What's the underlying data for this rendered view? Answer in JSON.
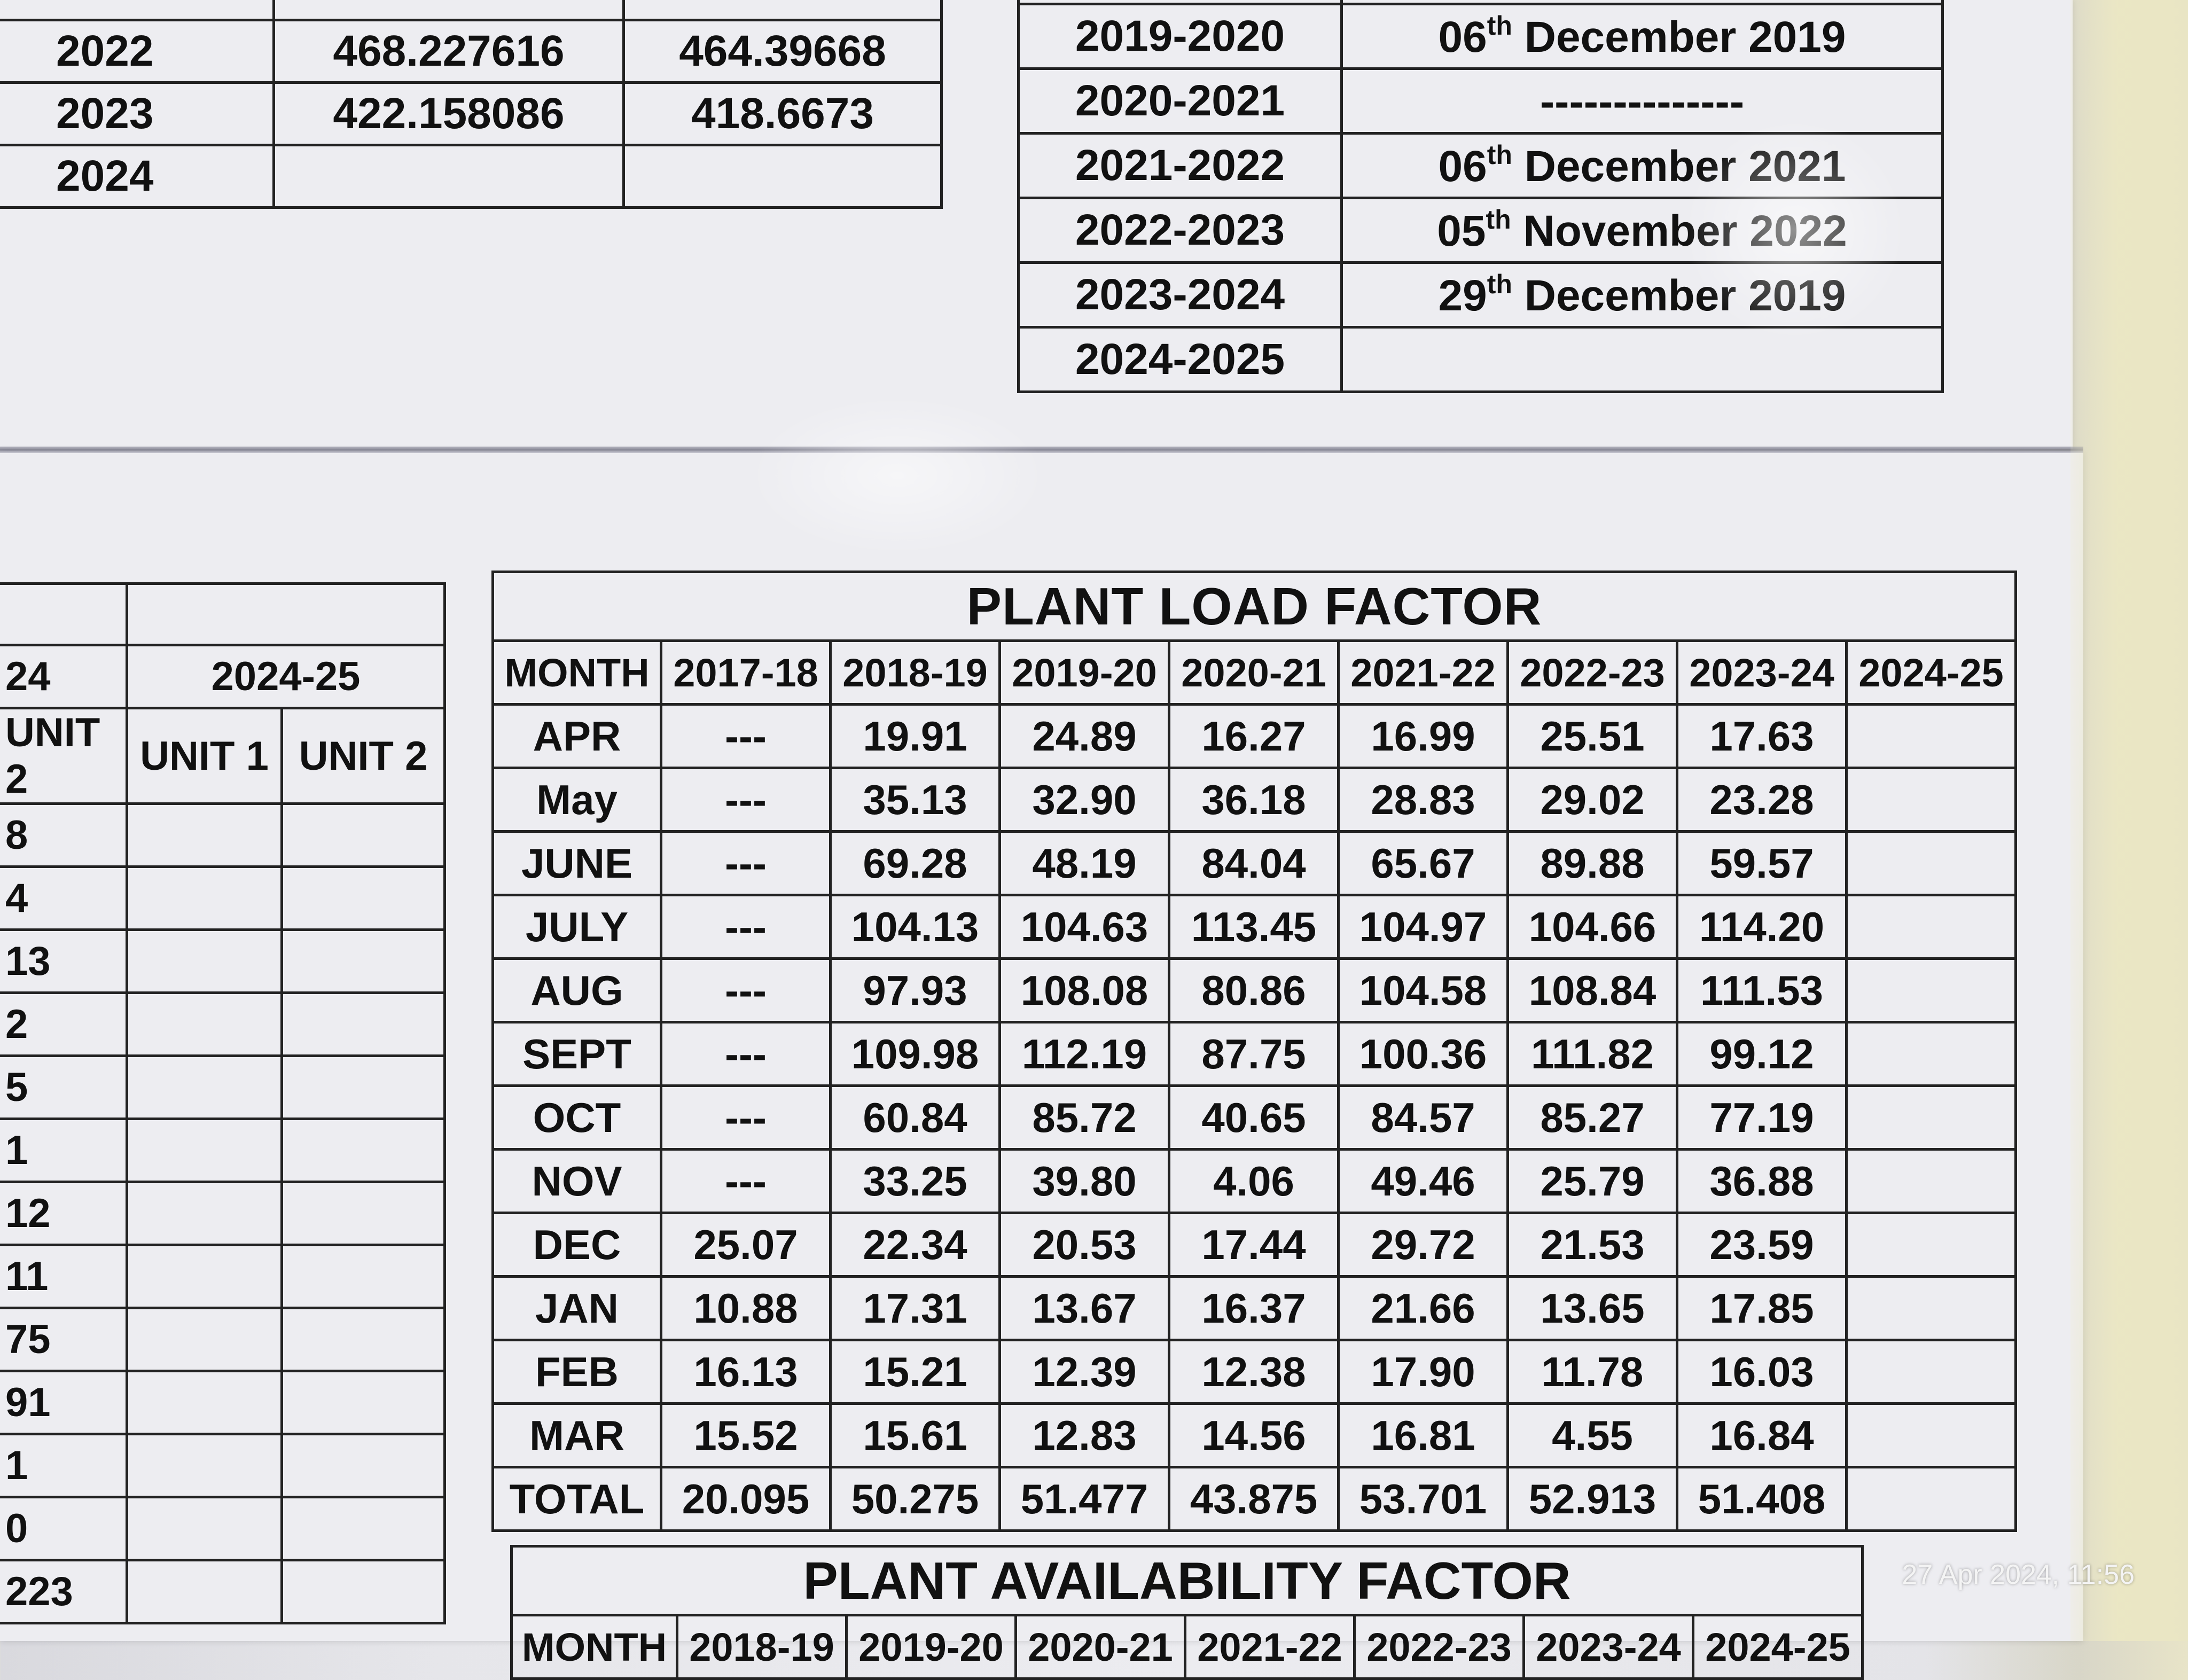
{
  "years_table": {
    "rows": [
      {
        "year": "2022",
        "value1": "468.227616",
        "value2": "464.39668"
      },
      {
        "year": "2023",
        "value1": "422.158086",
        "value2": "418.6673"
      },
      {
        "year": "2024",
        "value1": "",
        "value2": ""
      }
    ]
  },
  "dates_table": {
    "rows": [
      {
        "period": "2019-2020",
        "day": "06",
        "suffix": "th",
        "rest": "December 2019"
      },
      {
        "period": "2020-2021",
        "day": "",
        "suffix": "",
        "rest": "--------------"
      },
      {
        "period": "2021-2022",
        "day": "06",
        "suffix": "th",
        "rest": "December 2021"
      },
      {
        "period": "2022-2023",
        "day": "05",
        "suffix": "th",
        "rest": "November 2022"
      },
      {
        "period": "2023-2024",
        "day": "29",
        "suffix": "th",
        "rest": "December 2019"
      },
      {
        "period": "2024-2025",
        "day": "",
        "suffix": "",
        "rest": ""
      }
    ]
  },
  "units_table": {
    "year_left": "24",
    "year_right": "2024-25",
    "col_left": "UNIT 2",
    "col_u1": "UNIT 1",
    "col_u2": "UNIT 2",
    "values": [
      "8",
      "4",
      "13",
      "2",
      "5",
      "1",
      "12",
      "11",
      "75",
      "91",
      "1",
      "0",
      "223"
    ]
  },
  "plant_load_factor": {
    "title": "PLANT LOAD FACTOR",
    "headers": [
      "MONTH",
      "2017-18",
      "2018-19",
      "2019-20",
      "2020-21",
      "2021-22",
      "2022-23",
      "2023-24",
      "2024-25"
    ],
    "rows": [
      [
        "APR",
        "---",
        "19.91",
        "24.89",
        "16.27",
        "16.99",
        "25.51",
        "17.63",
        ""
      ],
      [
        "May",
        "---",
        "35.13",
        "32.90",
        "36.18",
        "28.83",
        "29.02",
        "23.28",
        ""
      ],
      [
        "JUNE",
        "---",
        "69.28",
        "48.19",
        "84.04",
        "65.67",
        "89.88",
        "59.57",
        ""
      ],
      [
        "JULY",
        "---",
        "104.13",
        "104.63",
        "113.45",
        "104.97",
        "104.66",
        "114.20",
        ""
      ],
      [
        "AUG",
        "---",
        "97.93",
        "108.08",
        "80.86",
        "104.58",
        "108.84",
        "111.53",
        ""
      ],
      [
        "SEPT",
        "---",
        "109.98",
        "112.19",
        "87.75",
        "100.36",
        "111.82",
        "99.12",
        ""
      ],
      [
        "OCT",
        "---",
        "60.84",
        "85.72",
        "40.65",
        "84.57",
        "85.27",
        "77.19",
        ""
      ],
      [
        "NOV",
        "---",
        "33.25",
        "39.80",
        "4.06",
        "49.46",
        "25.79",
        "36.88",
        ""
      ],
      [
        "DEC",
        "25.07",
        "22.34",
        "20.53",
        "17.44",
        "29.72",
        "21.53",
        "23.59",
        ""
      ],
      [
        "JAN",
        "10.88",
        "17.31",
        "13.67",
        "16.37",
        "21.66",
        "13.65",
        "17.85",
        ""
      ],
      [
        "FEB",
        "16.13",
        "15.21",
        "12.39",
        "12.38",
        "17.90",
        "11.78",
        "16.03",
        ""
      ],
      [
        "MAR",
        "15.52",
        "15.61",
        "12.83",
        "14.56",
        "16.81",
        "4.55",
        "16.84",
        ""
      ],
      [
        "TOTAL",
        "20.095",
        "50.275",
        "51.477",
        "43.875",
        "53.701",
        "52.913",
        "51.408",
        ""
      ]
    ]
  },
  "plant_availability_factor": {
    "title": "PLANT AVAILABILITY FACTOR",
    "headers": [
      "MONTH",
      "2018-19",
      "2019-20",
      "2020-21",
      "2021-22",
      "2022-23",
      "2023-24",
      "2024-25"
    ]
  },
  "timestamp": "27 Apr 2024, 11:56"
}
